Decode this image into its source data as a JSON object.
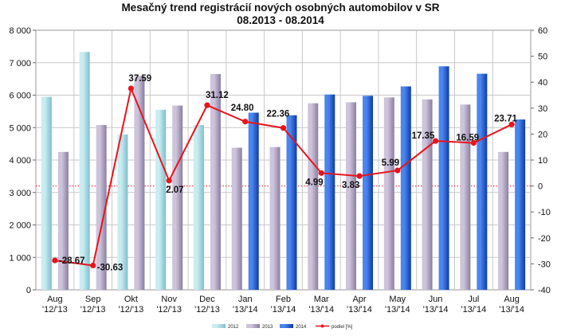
{
  "chart_data": {
    "type": "bar",
    "title": "Mesačný trend registrácií nových osobných automobilov v SR",
    "subtitle": "08.2013 - 08.2014",
    "categories": [
      [
        "Aug",
        "'12/'13"
      ],
      [
        "Sep",
        "'12/'13"
      ],
      [
        "Okt",
        "'12/'13"
      ],
      [
        "Nov",
        "'12/'13"
      ],
      [
        "Dec",
        "'12/'13"
      ],
      [
        "Jan",
        "'13/'14"
      ],
      [
        "Feb",
        "'13/'14"
      ],
      [
        "Mar",
        "'13/'14"
      ],
      [
        "Apr",
        "'13/'14"
      ],
      [
        "May",
        "'13/'14"
      ],
      [
        "Jun",
        "'13/'14"
      ],
      [
        "Jul",
        "'13/'14"
      ],
      [
        "Aug",
        "'13/'14"
      ]
    ],
    "series": [
      {
        "name": "2012",
        "axis": "left",
        "color": "#9fd4de",
        "values": [
          5950,
          7330,
          4790,
          5550,
          5080,
          null,
          null,
          null,
          null,
          null,
          null,
          null,
          null
        ]
      },
      {
        "name": "2013",
        "axis": "left",
        "color": "#a69bb8",
        "values": [
          4250,
          5080,
          6590,
          5680,
          6650,
          4380,
          4400,
          5750,
          5780,
          5930,
          5870,
          5710,
          4250
        ]
      },
      {
        "name": "2014",
        "axis": "left",
        "color": "#1f55cc",
        "values": [
          null,
          null,
          null,
          null,
          null,
          5460,
          5380,
          6020,
          5980,
          6270,
          6890,
          6660,
          5250
        ]
      },
      {
        "name": "podiel [%]",
        "axis": "right",
        "type": "line",
        "color": "#e8141c",
        "values": [
          -28.67,
          -30.63,
          37.59,
          2.07,
          31.12,
          24.8,
          22.36,
          4.99,
          3.83,
          5.99,
          17.35,
          16.59,
          23.71
        ],
        "labels": [
          "-28.67",
          "-30.63",
          "37.59",
          "2.07",
          "31.12",
          "24.80",
          "22.36",
          "4.99",
          "3.83",
          "5.99",
          "17.35",
          "16.59",
          "23.71"
        ]
      }
    ],
    "yleft": {
      "ylim": [
        0,
        8000
      ],
      "ticks": [
        "0",
        "1 000",
        "2 000",
        "3 000",
        "4 000",
        "5 000",
        "6 000",
        "7 000",
        "8 000"
      ]
    },
    "yright": {
      "ylim": [
        -40,
        60
      ],
      "ticks": [
        "-40",
        "-30",
        "-20",
        "-10",
        "0",
        "10",
        "20",
        "30",
        "40",
        "50",
        "60"
      ]
    },
    "grid": true,
    "legend": "bottom"
  }
}
